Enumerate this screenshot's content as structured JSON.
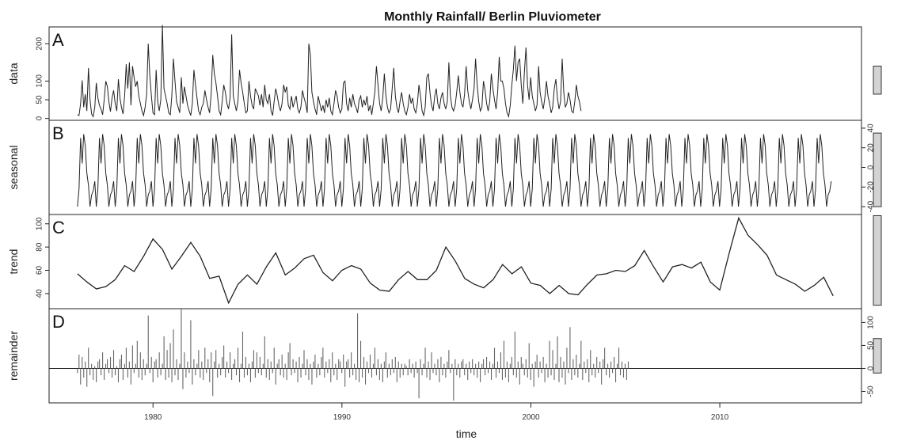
{
  "chart_data": {
    "type": "line",
    "title": "Monthly Rainfall/ Berlin Pluviometer",
    "xlabel": "time",
    "xlim": [
      1974.5,
      2017.5
    ],
    "x_ticks": [
      1980,
      1990,
      2000,
      2010
    ],
    "x_tick_labels": [
      "1980",
      "1990",
      "2000",
      "2010"
    ],
    "panels": [
      {
        "id": "data",
        "letter": "A",
        "ylabel": "data",
        "kind": "line",
        "axis_side": "left",
        "ylim": [
          -5,
          245
        ],
        "y_ticks": [
          0,
          50,
          100,
          200
        ],
        "y_tick_labels": [
          "0",
          "50",
          "100",
          "200"
        ],
        "range_bar": [
          65,
          140
        ],
        "series": {
          "start": 1976.0,
          "step": 0.0833,
          "values": [
            10,
            8,
            40,
            102,
            30,
            65,
            20,
            135,
            50,
            12,
            5,
            30,
            95,
            55,
            35,
            25,
            10,
            50,
            100,
            85,
            45,
            18,
            55,
            75,
            40,
            20,
            105,
            55,
            30,
            12,
            60,
            145,
            80,
            150,
            35,
            140,
            110,
            85,
            100,
            60,
            40,
            20,
            8,
            30,
            65,
            200,
            115,
            60,
            15,
            10,
            130,
            45,
            20,
            50,
            250,
            80,
            60,
            40,
            15,
            10,
            60,
            160,
            100,
            45,
            30,
            15,
            110,
            40,
            85,
            60,
            35,
            20,
            8,
            40,
            130,
            90,
            55,
            20,
            10,
            30,
            40,
            75,
            50,
            30,
            15,
            65,
            170,
            120,
            95,
            60,
            20,
            10,
            45,
            90,
            70,
            40,
            25,
            55,
            225,
            60,
            40,
            20,
            45,
            130,
            95,
            70,
            40,
            15,
            20,
            100,
            60,
            35,
            25,
            80,
            70,
            60,
            35,
            65,
            30,
            90,
            50,
            40,
            65,
            20,
            8,
            45,
            80,
            60,
            35,
            20,
            40,
            90,
            70,
            85,
            35,
            25,
            60,
            30,
            45,
            60,
            25,
            15,
            30,
            75,
            55,
            40,
            15,
            200,
            170,
            70,
            45,
            25,
            10,
            60,
            40,
            20,
            35,
            15,
            50,
            30,
            55,
            20,
            10,
            40,
            75,
            60,
            30,
            15,
            25,
            95,
            100,
            40,
            20,
            55,
            30,
            65,
            40,
            30,
            15,
            50,
            60,
            30,
            50,
            35,
            60,
            20,
            35,
            10,
            40,
            70,
            140,
            90,
            40,
            20,
            55,
            120,
            60,
            30,
            15,
            25,
            80,
            135,
            60,
            30,
            15,
            45,
            70,
            40,
            20,
            10,
            30,
            65,
            40,
            55,
            25,
            15,
            40,
            90,
            60,
            20,
            8,
            30,
            110,
            120,
            70,
            35,
            20,
            60,
            80,
            40,
            25,
            55,
            70,
            40,
            25,
            45,
            150,
            60,
            30,
            20,
            35,
            70,
            115,
            70,
            40,
            30,
            65,
            140,
            75,
            45,
            25,
            50,
            80,
            160,
            90,
            45,
            20,
            30,
            100,
            75,
            40,
            20,
            45,
            120,
            80,
            50,
            25,
            70,
            165,
            100,
            100,
            80,
            40,
            15,
            5,
            35,
            90,
            130,
            195,
            100,
            150,
            160,
            90,
            40,
            125,
            190,
            90,
            50,
            110,
            60,
            40,
            20,
            35,
            140,
            70,
            45,
            25,
            55,
            100,
            60,
            40,
            15,
            30,
            80,
            105,
            55,
            25,
            45,
            160,
            70,
            30,
            40,
            70,
            50,
            20,
            15,
            45,
            90,
            60,
            45,
            20
          ]
        }
      },
      {
        "id": "seasonal",
        "letter": "B",
        "ylabel": "seasonal",
        "kind": "line",
        "axis_side": "right",
        "ylim": [
          -48,
          48
        ],
        "y_ticks": [
          -40,
          -20,
          0,
          20,
          40
        ],
        "y_tick_labels": [
          "-40",
          "-20",
          "0",
          "20",
          "40"
        ],
        "range_bar": [
          -40,
          35
        ],
        "series": {
          "start": 1976.0,
          "step": 0.0833,
          "pattern": [
            -40,
            -22,
            30,
            4,
            34,
            22,
            -6,
            -18,
            -40,
            -28,
            -24,
            -14
          ],
          "cycles": 40
        }
      },
      {
        "id": "trend",
        "letter": "C",
        "ylabel": "trend",
        "kind": "line",
        "axis_side": "left",
        "ylim": [
          27,
          108
        ],
        "y_ticks": [
          40,
          60,
          80,
          100
        ],
        "y_tick_labels": [
          "40",
          "60",
          "80",
          "100"
        ],
        "range_bar": [
          30,
          107
        ],
        "series": {
          "x": [
            1976.0,
            1976.5,
            1977.0,
            1977.5,
            1978.0,
            1978.5,
            1979.0,
            1979.5,
            1980.0,
            1980.5,
            1981.0,
            1981.5,
            1982.0,
            1982.5,
            1983.0,
            1983.5,
            1984.0,
            1984.5,
            1985.0,
            1985.5,
            1986.0,
            1986.5,
            1987.0,
            1987.5,
            1988.0,
            1988.5,
            1989.0,
            1989.5,
            1990.0,
            1990.5,
            1991.0,
            1991.5,
            1992.0,
            1992.5,
            1993.0,
            1993.5,
            1994.0,
            1994.5,
            1995.0,
            1995.5,
            1996.0,
            1996.5,
            1997.0,
            1997.5,
            1998.0,
            1998.5,
            1999.0,
            1999.5,
            2000.0,
            2000.5,
            2001.0,
            2001.5,
            2002.0,
            2002.5,
            2003.0,
            2003.5,
            2004.0,
            2004.5,
            2005.0,
            2005.5,
            2006.0,
            2006.5,
            2007.0,
            2007.5,
            2008.0,
            2008.5,
            2009.0,
            2009.5,
            2010.0,
            2010.5,
            2011.0,
            2011.5,
            2012.0,
            2012.5,
            2013.0,
            2013.5,
            2014.0,
            2014.5,
            2015.0,
            2015.5,
            2016.0
          ],
          "values": [
            57,
            50,
            44,
            46,
            52,
            64,
            59,
            72,
            87,
            78,
            61,
            72,
            84,
            72,
            53,
            55,
            32,
            48,
            56,
            48,
            63,
            75,
            56,
            62,
            70,
            73,
            58,
            51,
            60,
            64,
            61,
            49,
            43,
            42,
            52,
            59,
            52,
            52,
            60,
            80,
            68,
            53,
            48,
            45,
            52,
            65,
            57,
            63,
            49,
            47,
            40,
            47,
            40,
            39,
            48,
            56,
            57,
            60,
            59,
            64,
            77,
            63,
            50,
            63,
            65,
            62,
            67,
            50,
            43,
            75,
            105,
            90,
            82,
            73,
            56,
            52,
            48,
            42,
            47,
            54,
            38
          ]
        }
      },
      {
        "id": "remainder",
        "letter": "D",
        "ylabel": "remainder",
        "kind": "bar",
        "axis_side": "right",
        "ylim": [
          -75,
          130
        ],
        "y_ticks": [
          -50,
          0,
          50,
          100
        ],
        "y_tick_labels": [
          "-50",
          "0",
          "50",
          "100"
        ],
        "range_bar": [
          -10,
          65
        ],
        "series": {
          "start": 1976.0,
          "step": 0.0833,
          "values": [
            -10,
            30,
            -35,
            25,
            -20,
            15,
            -40,
            45,
            -15,
            10,
            -25,
            5,
            -30,
            15,
            20,
            -15,
            35,
            -25,
            10,
            20,
            -10,
            25,
            -20,
            40,
            -15,
            5,
            -30,
            20,
            30,
            -25,
            10,
            45,
            -20,
            15,
            -35,
            50,
            -10,
            10,
            60,
            -20,
            35,
            -25,
            20,
            -15,
            10,
            115,
            -10,
            25,
            -30,
            15,
            20,
            -20,
            35,
            -15,
            10,
            70,
            -25,
            40,
            -20,
            55,
            -30,
            85,
            -15,
            20,
            -25,
            10,
            130,
            -45,
            35,
            -20,
            15,
            -10,
            105,
            -35,
            20,
            -15,
            10,
            40,
            -20,
            15,
            -25,
            45,
            -10,
            20,
            -30,
            35,
            -60,
            15,
            40,
            -20,
            10,
            -15,
            25,
            50,
            -20,
            15,
            -10,
            35,
            -25,
            10,
            20,
            -15,
            45,
            -30,
            10,
            80,
            -20,
            25,
            -15,
            10,
            -30,
            15,
            40,
            -20,
            35,
            -10,
            25,
            -15,
            10,
            70,
            -20,
            20,
            -25,
            15,
            -10,
            45,
            -35,
            10,
            20,
            -15,
            30,
            -20,
            10,
            -25,
            35,
            55,
            -15,
            20,
            -10,
            15,
            -30,
            25,
            -20,
            10,
            40,
            -15,
            20,
            -25,
            10,
            -35,
            15,
            30,
            -20,
            10,
            -15,
            25,
            45,
            -20,
            15,
            -10,
            20,
            -30,
            35,
            -15,
            10,
            -25,
            20,
            15,
            -10,
            30,
            -40,
            15,
            20,
            -20,
            35,
            -15,
            10,
            -25,
            120,
            -30,
            60,
            -20,
            25,
            -35,
            15,
            -10,
            30,
            -20,
            10,
            45,
            -15,
            20,
            -25,
            10,
            -30,
            15,
            35,
            -20,
            10,
            -15,
            20,
            -10,
            25,
            -30,
            15,
            -20,
            10,
            -15,
            10,
            5,
            -15,
            20,
            -10,
            10,
            -20,
            15,
            -10,
            -65,
            20,
            -15,
            10,
            45,
            -20,
            15,
            -25,
            35,
            -10,
            10,
            -15,
            20,
            -30,
            25,
            -15,
            10,
            -20,
            15,
            40,
            -10,
            10,
            -70,
            20,
            -15,
            10,
            -20,
            15,
            20,
            -15,
            10,
            -25,
            15,
            -10,
            20,
            -15,
            10,
            -20,
            15,
            -30,
            10,
            20,
            -15,
            25,
            -10,
            15,
            -25,
            10,
            45,
            -20,
            15,
            -10,
            35,
            -25,
            60,
            -20,
            15,
            -30,
            10,
            25,
            -15,
            80,
            -20,
            15,
            -35,
            25,
            10,
            -15,
            20,
            -20,
            55,
            -25,
            10,
            -40,
            15,
            30,
            -20,
            15,
            -10,
            25,
            -30,
            10,
            -20,
            60,
            -15,
            40,
            -25,
            10,
            70,
            -30,
            25,
            -20,
            15,
            -35,
            45,
            -10,
            90,
            -25,
            20,
            -15,
            30,
            -20,
            10,
            60,
            -25,
            15,
            -10,
            20,
            -30,
            40,
            -15,
            10,
            -20,
            25,
            -10,
            15,
            -35,
            20,
            45,
            -15,
            10,
            -20,
            15,
            -10,
            25,
            -30,
            10,
            45,
            -15,
            15,
            -20,
            10,
            -25,
            15
          ]
        }
      }
    ]
  }
}
